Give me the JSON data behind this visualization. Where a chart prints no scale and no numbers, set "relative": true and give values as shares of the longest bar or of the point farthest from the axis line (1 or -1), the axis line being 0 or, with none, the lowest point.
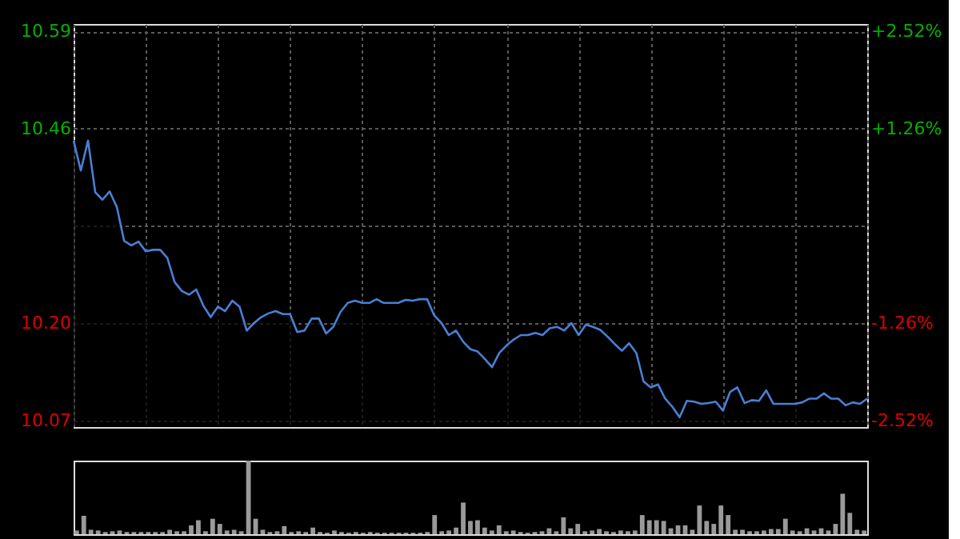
{
  "chart_data": [
    {
      "type": "area",
      "categories": [
        null,
        null,
        null,
        null,
        null,
        null,
        null,
        null,
        null,
        null,
        null,
        null,
        null,
        null,
        null,
        null,
        null,
        null,
        null,
        null,
        null,
        null,
        null,
        null,
        null,
        null,
        null,
        null,
        null,
        null,
        null,
        null,
        null,
        null,
        null,
        null,
        null,
        null,
        null,
        null,
        null,
        null,
        null,
        null,
        null,
        null,
        null,
        null,
        null,
        null,
        null,
        null,
        null,
        null,
        null,
        null,
        null,
        null,
        null,
        null,
        null,
        null,
        null,
        null,
        null,
        null,
        null,
        null,
        null,
        null,
        null,
        null,
        null,
        null,
        null,
        null,
        null,
        null,
        null,
        null,
        null,
        null,
        null,
        null,
        null,
        null,
        null,
        null,
        null,
        null,
        null,
        null,
        null,
        null,
        null,
        null,
        null,
        null,
        null,
        null,
        null,
        null,
        null,
        null,
        null,
        null,
        null,
        null,
        null,
        null,
        null
      ],
      "ylim": [
        10.061,
        10.6
      ],
      "yticks": [
        10.07,
        {
          "value": 10.2,
          "label": "10.20"
        },
        {
          "value": 10.33,
          "label": null
        },
        10.46,
        10.59
      ],
      "y2lim": [
        -2.6,
        2.61
      ],
      "y2ticks": [
        {
          "value": -2.52,
          "label": "-2.52%"
        },
        {
          "value": -1.26,
          "label": "-1.26%"
        },
        {
          "value": 0,
          "label": null
        },
        {
          "value": 1.26,
          "label": "+1.26%"
        },
        {
          "value": 2.52,
          "label": "+2.52%"
        }
      ],
      "grid": true,
      "series": [
        {
          "color": "#4a7fd4",
          "values": [
            10.444,
            10.404,
            10.444,
            10.375,
            10.365,
            10.376,
            10.355,
            10.31,
            10.304,
            10.309,
            10.296,
            10.298,
            10.298,
            10.287,
            10.255,
            10.243,
            10.238,
            10.245,
            10.223,
            10.208,
            10.222,
            10.216,
            10.23,
            10.222,
            10.19,
            10.2,
            10.208,
            10.213,
            10.216,
            10.212,
            10.212,
            10.188,
            10.19,
            10.206,
            10.206,
            10.186,
            10.195,
            10.215,
            10.227,
            10.23,
            10.227,
            10.227,
            10.232,
            10.227,
            10.227,
            10.227,
            10.231,
            10.23,
            10.232,
            10.232,
            10.21,
            10.2,
            10.184,
            10.19,
            10.175,
            10.165,
            10.162,
            10.152,
            10.141,
            10.16,
            10.17,
            10.178,
            10.184,
            10.184,
            10.187,
            10.184,
            10.193,
            10.195,
            10.19,
            10.2,
            10.184,
            10.198,
            10.195,
            10.191,
            10.182,
            10.172,
            10.163,
            10.173,
            10.16,
            10.122,
            10.114,
            10.118,
            10.099,
            10.088,
            10.074,
            10.096,
            10.095,
            10.092,
            10.093,
            10.095,
            10.083,
            10.108,
            10.114,
            10.093,
            10.097,
            10.096,
            10.11,
            10.092,
            10.092,
            10.092,
            10.092,
            10.094,
            10.099,
            10.099,
            10.106,
            10.099,
            10.099,
            10.09,
            10.094,
            10.092,
            10.099
          ]
        }
      ]
    },
    {
      "type": "bar",
      "relative": true,
      "categories": [
        null,
        null,
        null,
        null,
        null,
        null,
        null,
        null,
        null,
        null,
        null,
        null,
        null,
        null,
        null,
        null,
        null,
        null,
        null,
        null,
        null,
        null,
        null,
        null,
        null,
        null,
        null,
        null,
        null,
        null,
        null,
        null,
        null,
        null,
        null,
        null,
        null,
        null,
        null,
        null,
        null,
        null,
        null,
        null,
        null,
        null,
        null,
        null,
        null,
        null,
        null,
        null,
        null,
        null,
        null,
        null,
        null,
        null,
        null,
        null,
        null,
        null,
        null,
        null,
        null,
        null,
        null,
        null,
        null,
        null,
        null,
        null,
        null,
        null,
        null,
        null,
        null,
        null,
        null,
        null,
        null,
        null,
        null,
        null,
        null,
        null,
        null,
        null,
        null,
        null,
        null,
        null,
        null,
        null,
        null,
        null,
        null,
        null,
        null,
        null,
        null,
        null,
        null,
        null,
        null,
        null,
        null,
        null,
        null,
        null,
        null
      ],
      "series": [
        {
          "color": "#9a9a9a",
          "values": [
            0.05,
            0.25,
            0.06,
            0.05,
            0.03,
            0.04,
            0.05,
            0.03,
            0.03,
            0.03,
            0.03,
            0.03,
            0.03,
            0.06,
            0.04,
            0.04,
            0.12,
            0.19,
            0.04,
            0.21,
            0.14,
            0.05,
            0.06,
            0.04,
            1.0,
            0.21,
            0.06,
            0.03,
            0.04,
            0.11,
            0.03,
            0.04,
            0.03,
            0.09,
            0.03,
            0.02,
            0.05,
            0.03,
            0.02,
            0.03,
            0.02,
            0.03,
            0.02,
            0.02,
            0.02,
            0.02,
            0.02,
            0.02,
            0.02,
            0.03,
            0.26,
            0.04,
            0.05,
            0.09,
            0.43,
            0.18,
            0.19,
            0.09,
            0.05,
            0.12,
            0.04,
            0.05,
            0.03,
            0.02,
            0.03,
            0.04,
            0.08,
            0.04,
            0.23,
            0.08,
            0.14,
            0.04,
            0.05,
            0.07,
            0.04,
            0.03,
            0.05,
            0.04,
            0.05,
            0.26,
            0.19,
            0.19,
            0.18,
            0.08,
            0.12,
            0.12,
            0.06,
            0.39,
            0.18,
            0.14,
            0.39,
            0.26,
            0.06,
            0.06,
            0.04,
            0.04,
            0.05,
            0.07,
            0.07,
            0.21,
            0.05,
            0.04,
            0.08,
            0.05,
            0.08,
            0.05,
            0.14,
            0.55,
            0.29,
            0.06,
            0.05
          ]
        }
      ]
    }
  ]
}
